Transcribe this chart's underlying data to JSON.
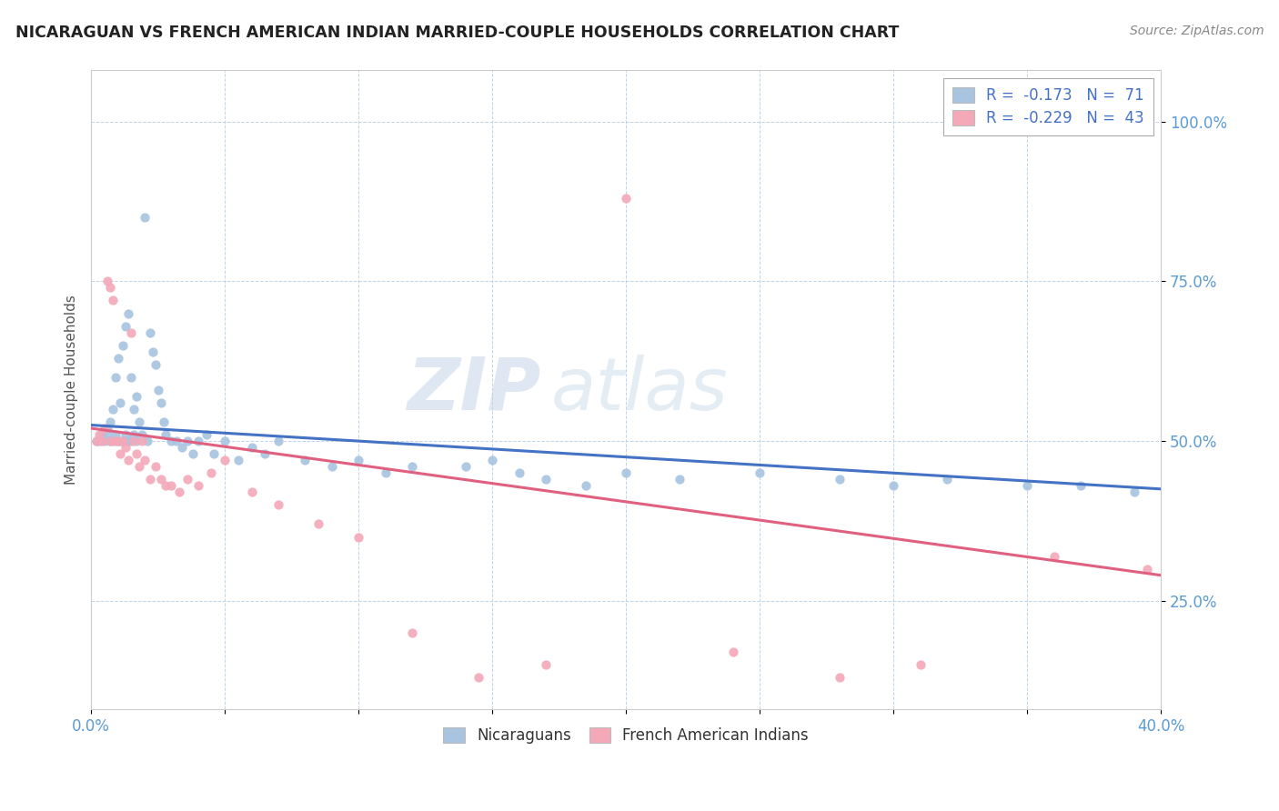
{
  "title": "NICARAGUAN VS FRENCH AMERICAN INDIAN MARRIED-COUPLE HOUSEHOLDS CORRELATION CHART",
  "source": "Source: ZipAtlas.com",
  "ylabel": "Married-couple Households",
  "xlim": [
    0.0,
    0.4
  ],
  "ylim": [
    0.08,
    1.08
  ],
  "xticks": [
    0.0,
    0.05,
    0.1,
    0.15,
    0.2,
    0.25,
    0.3,
    0.35,
    0.4
  ],
  "yticks": [
    0.25,
    0.5,
    0.75,
    1.0
  ],
  "ytick_labels": [
    "25.0%",
    "50.0%",
    "75.0%",
    "100.0%"
  ],
  "blue_color": "#a8c4e0",
  "pink_color": "#f4a8b8",
  "blue_line_color": "#4472c4",
  "pink_line_color": "#e06080",
  "blue_R": -0.173,
  "blue_N": 71,
  "pink_R": -0.229,
  "pink_N": 43,
  "watermark_zip": "ZIP",
  "watermark_atlas": "atlas",
  "legend_label_blue": "Nicaraguans",
  "legend_label_pink": "French American Indians",
  "blue_scatter_x": [
    0.002,
    0.003,
    0.004,
    0.005,
    0.006,
    0.006,
    0.007,
    0.007,
    0.008,
    0.008,
    0.009,
    0.009,
    0.01,
    0.01,
    0.011,
    0.011,
    0.012,
    0.012,
    0.013,
    0.013,
    0.014,
    0.014,
    0.015,
    0.015,
    0.016,
    0.016,
    0.017,
    0.017,
    0.018,
    0.019,
    0.02,
    0.021,
    0.022,
    0.023,
    0.024,
    0.025,
    0.026,
    0.027,
    0.028,
    0.03,
    0.032,
    0.034,
    0.036,
    0.038,
    0.04,
    0.043,
    0.046,
    0.05,
    0.055,
    0.06,
    0.065,
    0.07,
    0.08,
    0.09,
    0.1,
    0.11,
    0.12,
    0.14,
    0.15,
    0.16,
    0.17,
    0.185,
    0.2,
    0.22,
    0.25,
    0.28,
    0.3,
    0.32,
    0.35,
    0.37,
    0.39
  ],
  "blue_scatter_y": [
    0.5,
    0.5,
    0.51,
    0.5,
    0.51,
    0.52,
    0.5,
    0.53,
    0.5,
    0.55,
    0.51,
    0.6,
    0.5,
    0.63,
    0.5,
    0.56,
    0.5,
    0.65,
    0.51,
    0.68,
    0.5,
    0.7,
    0.5,
    0.6,
    0.51,
    0.55,
    0.5,
    0.57,
    0.53,
    0.51,
    0.85,
    0.5,
    0.67,
    0.64,
    0.62,
    0.58,
    0.56,
    0.53,
    0.51,
    0.5,
    0.5,
    0.49,
    0.5,
    0.48,
    0.5,
    0.51,
    0.48,
    0.5,
    0.47,
    0.49,
    0.48,
    0.5,
    0.47,
    0.46,
    0.47,
    0.45,
    0.46,
    0.46,
    0.47,
    0.45,
    0.44,
    0.43,
    0.45,
    0.44,
    0.45,
    0.44,
    0.43,
    0.44,
    0.43,
    0.43,
    0.42
  ],
  "pink_scatter_x": [
    0.002,
    0.003,
    0.004,
    0.005,
    0.006,
    0.007,
    0.007,
    0.008,
    0.009,
    0.01,
    0.011,
    0.012,
    0.013,
    0.014,
    0.015,
    0.016,
    0.017,
    0.018,
    0.019,
    0.02,
    0.022,
    0.024,
    0.026,
    0.028,
    0.03,
    0.033,
    0.036,
    0.04,
    0.045,
    0.05,
    0.06,
    0.07,
    0.085,
    0.1,
    0.12,
    0.145,
    0.17,
    0.2,
    0.24,
    0.28,
    0.31,
    0.36,
    0.395
  ],
  "pink_scatter_y": [
    0.5,
    0.51,
    0.5,
    0.52,
    0.75,
    0.74,
    0.5,
    0.72,
    0.5,
    0.5,
    0.48,
    0.5,
    0.49,
    0.47,
    0.67,
    0.5,
    0.48,
    0.46,
    0.5,
    0.47,
    0.44,
    0.46,
    0.44,
    0.43,
    0.43,
    0.42,
    0.44,
    0.43,
    0.45,
    0.47,
    0.42,
    0.4,
    0.37,
    0.35,
    0.2,
    0.13,
    0.15,
    0.88,
    0.17,
    0.13,
    0.15,
    0.32,
    0.3
  ]
}
